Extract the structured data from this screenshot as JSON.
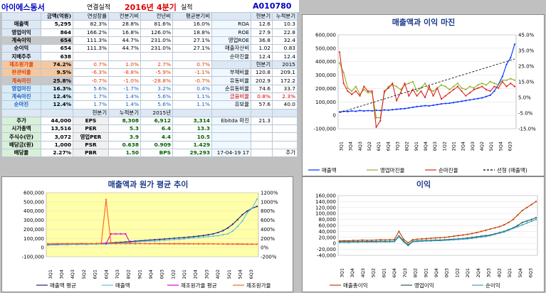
{
  "header": {
    "name": "아이에스동서",
    "basis": "연결실적",
    "year": "2016년",
    "quarter": "4분기",
    "suffix": "실적",
    "code": "A010780"
  },
  "table": {
    "rows": [
      {
        "label": "",
        "cells": [
          "금액(억원)",
          "연성장률",
          "전분기비",
          "전년비",
          "평균분기비"
        ],
        "r": [
          "현분기",
          "누적분기"
        ],
        "rl": "",
        "bg": "#dde8f4",
        "rbg": "#dde8f4"
      },
      {
        "label": "매출액",
        "cells": [
          "5,295",
          "82.3%",
          "28.8%",
          "81.6%",
          "16.0%"
        ],
        "rl": "ROA",
        "r": [
          "12.6",
          "10.3"
        ]
      },
      {
        "label": "영업이익",
        "cells": [
          "864",
          "166.2%",
          "16.8%",
          "126.0%",
          "18.8%"
        ],
        "rl": "ROE",
        "r": [
          "27.9",
          "22.8"
        ]
      },
      {
        "label": "계속이익",
        "cells": [
          "654",
          "111.3%",
          "44.7%",
          "231.0%",
          "27.1%"
        ],
        "rl": "영업ROE",
        "r": [
          "36.8",
          "32.4"
        ],
        "bg": "#c8c8c8"
      },
      {
        "label": "순이익",
        "cells": [
          "654",
          "111.3%",
          "44.7%",
          "231.0%",
          "27.1%"
        ],
        "rl": "매출자산비",
        "r": [
          "1.02",
          "0.83"
        ]
      },
      {
        "label": "지배주주",
        "cells": [
          "638",
          "",
          "",
          "",
          ""
        ],
        "rl": "순마진율",
        "r": [
          "12.4",
          "12.4"
        ]
      },
      {
        "label": "제조원가율",
        "cells": [
          "74.2%",
          "0.7%",
          "1.0%",
          "2.7%",
          "0.7%"
        ],
        "rl": "",
        "r": [
          "현분기",
          "2015"
        ],
        "bg": "#f5c8a0",
        "lc": "#e04000",
        "rbg": "#dde8f4"
      },
      {
        "label": "판관비율",
        "cells": [
          "9.5%",
          "-6.3%",
          "-8.8%",
          "-5.9%",
          "-1.1%"
        ],
        "rl": "부채비율",
        "r": [
          "120.8",
          "209.1"
        ],
        "bg": "#f5c8a0",
        "lc": "#e04000"
      },
      {
        "label": "계속마진",
        "cells": [
          "25.8%",
          "-0.7%",
          "-1.0%",
          "-28.8%",
          "-0.7%"
        ],
        "rl": "유동비율",
        "r": [
          "202.9",
          "172.2"
        ],
        "bg": "#c8c8c8",
        "lc": "#e04000"
      },
      {
        "label": "영업마진",
        "cells": [
          "16.3%",
          "5.6%",
          "-1.7%",
          "3.2%",
          "0.4%"
        ],
        "rl": "순유동비율",
        "r": [
          "74.6",
          "33.7"
        ],
        "bg": "#d8ecf8",
        "lc": "#2060c0"
      },
      {
        "label": "계속마진",
        "cells": [
          "12.4%",
          "1.7%",
          "1.4%",
          "5.6%",
          "1.1%"
        ],
        "rl": "금융비율",
        "r": [
          "0.8%",
          "2.3%"
        ],
        "bg": "#d8ecf8",
        "lc": "#2060c0",
        "rlc": "#e00000"
      },
      {
        "label": "순마진",
        "cells": [
          "12.4%",
          "1.7%",
          "1.4%",
          "5.6%",
          "1.1%"
        ],
        "rl": "유보율",
        "r": [
          "57.6",
          "40.0"
        ],
        "bg": "#d8ecf8",
        "lc": "#2060c0"
      },
      {
        "label": "",
        "cells": [
          "",
          "현분기",
          "누적분기",
          "2015년",
          ""
        ],
        "rl": "",
        "r": [
          "",
          ""
        ],
        "bg": "#dde8f4",
        "rbg": "#dde8f4"
      },
      {
        "label": "주가",
        "cells": [
          "44,000",
          "EPS",
          "8,308",
          "6,912",
          "3,314"
        ],
        "rl": "Ebitda 마진",
        "r": [
          "21.3",
          ""
        ],
        "g": true
      },
      {
        "label": "시가총액",
        "cells": [
          "13,516",
          "PER",
          "5.3",
          "6.4",
          "13.3"
        ],
        "rl": "",
        "r": [
          "",
          ""
        ],
        "g": true
      },
      {
        "label": "주식수(만)",
        "cells": [
          "3,072",
          "영업PER",
          "3.9",
          "4.4",
          "10.5"
        ],
        "rl": "",
        "r": [
          "",
          ""
        ],
        "g": true
      },
      {
        "label": "배당금(원)",
        "cells": [
          "1,000",
          "PSR",
          "0.638",
          "0.909",
          "1.429"
        ],
        "rl": "",
        "r": [
          "",
          ""
        ],
        "g": true
      },
      {
        "label": "배당율",
        "cells": [
          "2.27%",
          "PBR",
          "1.50",
          "BPS",
          "29,293"
        ],
        "rl": "17-04-19 17",
        "r": [
          "",
          "추가"
        ],
        "g": true
      }
    ]
  },
  "chart_data": [
    {
      "type": "line",
      "title": "매출액과 이익 마진",
      "ylim": [
        -100000,
        600000
      ],
      "y2lim": [
        -15,
        45
      ],
      "yticks": [
        "600,000",
        "500,000",
        "400,000",
        "300,000",
        "200,000",
        "100,000",
        "0",
        "-100,000"
      ],
      "y2ticks": [
        "45.0%",
        "35.0%",
        "25.0%",
        "15.0%",
        "5.0%",
        "-5.0%",
        "-15.0%"
      ],
      "xticks": [
        "3Q1",
        "3Q4",
        "4Q3",
        "5Q2",
        "6Q1",
        "6Q4",
        "7Q3",
        "8Q2",
        "9Q1",
        "9Q4",
        "0Q3",
        "1Q2",
        "2Q1",
        "2Q4",
        "3Q3",
        "4Q2",
        "5Q1",
        "5Q4",
        "6Q3"
      ],
      "series": [
        {
          "name": "매출액",
          "color": "#0030ff",
          "axis": "left",
          "values": [
            25000,
            30000,
            28000,
            33000,
            30000,
            36000,
            32000,
            35000,
            33000,
            38000,
            36000,
            40000,
            38000,
            42000,
            45000,
            48000,
            50000,
            55000,
            60000,
            65000,
            68000,
            72000,
            70000,
            75000,
            80000,
            85000,
            88000,
            90000,
            95000,
            100000,
            105000,
            110000,
            115000,
            120000,
            125000,
            130000,
            140000,
            150000,
            180000,
            230000,
            290000,
            380000,
            430000,
            530000
          ]
        },
        {
          "name": "영업마진율",
          "color": "#90b020",
          "axis": "right",
          "values": [
            27,
            21,
            11,
            9,
            12,
            7,
            10,
            8,
            8,
            -8,
            -8,
            8,
            12,
            13,
            12,
            10,
            13,
            14,
            15,
            9,
            11,
            14,
            10,
            9,
            11,
            13,
            12,
            10,
            12,
            14,
            11,
            10,
            12,
            11,
            13,
            14,
            13,
            15,
            14,
            13,
            16,
            16,
            17,
            16
          ]
        },
        {
          "name": "순마진율",
          "color": "#e02020",
          "axis": "right",
          "values": [
            34,
            14,
            9,
            7,
            9,
            6,
            12,
            9,
            9,
            -14,
            -10,
            9,
            11,
            14,
            3,
            8,
            14,
            6,
            10,
            6,
            9,
            5,
            12,
            6,
            11,
            4,
            6,
            8,
            10,
            12,
            9,
            6,
            8,
            10,
            11,
            12,
            10,
            9,
            12,
            11,
            15,
            12,
            14,
            12
          ]
        },
        {
          "name": "선형 (매출액)",
          "color": "#000000",
          "axis": "left",
          "dashed": true,
          "values": [
            20000,
            420000
          ]
        }
      ]
    },
    {
      "type": "line",
      "title": "매출액과 원가 평균 추이",
      "ylim": [
        -100000,
        600000
      ],
      "y2lim": [
        -200,
        1200
      ],
      "yticks": [
        "600,000",
        "500,000",
        "400,000",
        "300,000",
        "200,000",
        "100,000",
        "0",
        "-100,000"
      ],
      "y2ticks": [
        "1200%",
        "1000%",
        "800%",
        "600%",
        "400%",
        "200%",
        "0%",
        "-200%"
      ],
      "xticks": [
        "3Q1",
        "3Q4",
        "4Q3",
        "5Q2",
        "6Q1",
        "6Q4",
        "7Q3",
        "8Q2",
        "9Q1",
        "9Q4",
        "0Q3",
        "1Q2",
        "2Q1",
        "2Q4",
        "3Q3",
        "4Q2",
        "5Q1",
        "5Q4",
        "6Q3"
      ],
      "series": [
        {
          "name": "매출액 평균",
          "color": "#202080",
          "axis": "left",
          "values": [
            30000,
            31000,
            32000,
            33000,
            34000,
            36000,
            37000,
            39000,
            40000,
            42000,
            44000,
            46000,
            48000,
            52000,
            55000,
            58000,
            62000,
            66000,
            70000,
            74000,
            78000,
            82000,
            86000,
            90000,
            94000,
            98000,
            102000,
            106000,
            110000,
            115000,
            120000,
            126000,
            132000,
            140000,
            150000,
            165000,
            185000,
            215000,
            255000,
            305000,
            360000,
            400000,
            430000,
            450000
          ]
        },
        {
          "name": "매출액",
          "color": "#60c0e0",
          "axis": "left",
          "values": [
            25000,
            30000,
            28000,
            33000,
            30000,
            36000,
            32000,
            35000,
            33000,
            38000,
            36000,
            40000,
            38000,
            42000,
            45000,
            48000,
            50000,
            55000,
            60000,
            65000,
            68000,
            72000,
            70000,
            75000,
            80000,
            85000,
            88000,
            90000,
            95000,
            100000,
            105000,
            110000,
            115000,
            120000,
            125000,
            130000,
            140000,
            150000,
            180000,
            230000,
            290000,
            380000,
            430000,
            530000
          ]
        },
        {
          "name": "제조원가율 평균",
          "color": "#e000e0",
          "axis": "right",
          "values": [
            80,
            82,
            84,
            85,
            86,
            86,
            87,
            87,
            88,
            88,
            88,
            88,
            88,
            300,
            300,
            300,
            300,
            88,
            88,
            88,
            87,
            87,
            86,
            86,
            85,
            85,
            84,
            84,
            83,
            83,
            82,
            82,
            82,
            81,
            81,
            80,
            80,
            79,
            79,
            78,
            77,
            76,
            75,
            74
          ]
        },
        {
          "name": "제조원가율",
          "color": "#ff6020",
          "axis": "right",
          "values": [
            85,
            80,
            88,
            82,
            90,
            84,
            86,
            92,
            88,
            84,
            90,
            86,
            1050,
            92,
            84,
            88,
            86,
            90,
            84,
            88,
            86,
            84,
            88,
            82,
            86,
            84,
            80,
            86,
            82,
            84,
            80,
            84,
            78,
            82,
            80,
            78,
            80,
            76,
            78,
            74,
            76,
            72,
            74,
            72
          ]
        }
      ]
    },
    {
      "type": "line",
      "title": "이익",
      "ylim": [
        -40000,
        160000
      ],
      "yticks": [
        "160,000",
        "140,000",
        "120,000",
        "100,000",
        "80,000",
        "60,000",
        "40,000",
        "20,000",
        "0",
        "-20,000",
        "-40,000"
      ],
      "xticks": [
        "3Q1",
        "3Q4",
        "4Q3",
        "5Q2",
        "6Q1",
        "6Q4",
        "7Q3",
        "8Q2",
        "9Q1",
        "9Q4",
        "0Q3",
        "1Q2",
        "2Q1",
        "2Q4",
        "3Q3",
        "4Q2",
        "5Q1",
        "5Q4",
        "6Q3"
      ],
      "series": [
        {
          "name": "매출총이익",
          "color": "#c04000",
          "values": [
            8000,
            9000,
            8500,
            10000,
            9500,
            11000,
            10000,
            10500,
            11000,
            12000,
            11500,
            12500,
            13000,
            40000,
            14000,
            2000,
            12000,
            14000,
            15000,
            16000,
            17000,
            18000,
            19000,
            20000,
            22000,
            24000,
            26000,
            28000,
            30000,
            33000,
            36000,
            40000,
            44000,
            48000,
            52000,
            56000,
            62000,
            70000,
            80000,
            95000,
            110000,
            120000,
            130000,
            140000
          ]
        },
        {
          "name": "영업이익",
          "color": "#206060",
          "values": [
            5000,
            5500,
            5000,
            6000,
            5500,
            6500,
            6000,
            6500,
            6000,
            7000,
            6500,
            7000,
            7500,
            25000,
            8000,
            -5000,
            7000,
            8000,
            9000,
            10000,
            10000,
            11000,
            11000,
            12000,
            13000,
            14000,
            15000,
            16000,
            18000,
            20000,
            22000,
            24000,
            26000,
            28000,
            32000,
            36000,
            40000,
            46000,
            52000,
            60000,
            70000,
            75000,
            80000,
            86000
          ]
        },
        {
          "name": "순이익",
          "color": "#40a0c0",
          "values": [
            3000,
            3500,
            3000,
            4000,
            3500,
            4500,
            4000,
            4500,
            4000,
            5000,
            4500,
            5000,
            5500,
            22000,
            5000,
            -8000,
            5000,
            6000,
            7000,
            8000,
            8000,
            9000,
            9000,
            10000,
            11000,
            12000,
            13000,
            14000,
            15000,
            17000,
            19000,
            21000,
            23000,
            26000,
            30000,
            34000,
            38000,
            44000,
            50000,
            56000,
            62000,
            68000,
            74000,
            80000
          ]
        }
      ]
    }
  ]
}
